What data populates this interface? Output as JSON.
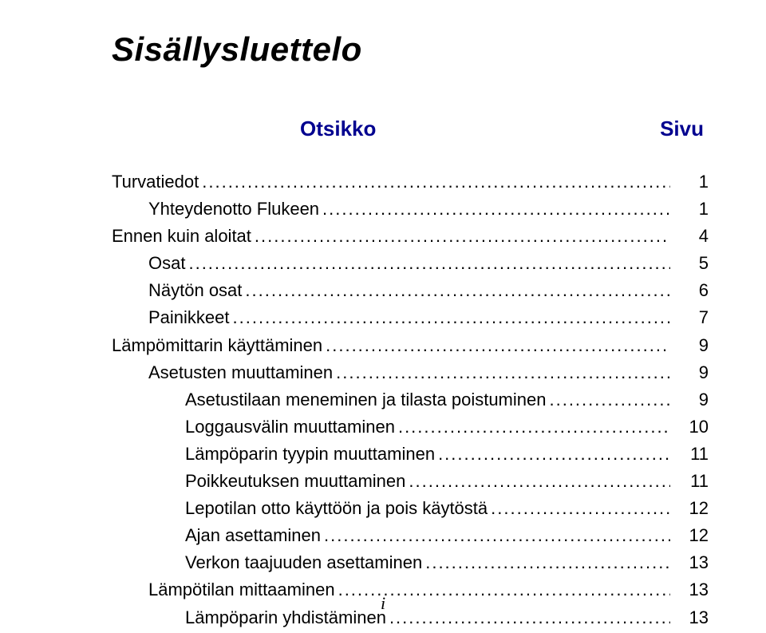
{
  "title": "Sisällysluettelo",
  "columns": {
    "left": "Otsikko",
    "right": "Sivu"
  },
  "page_number": "i",
  "colors": {
    "heading": "#00008f",
    "text": "#000000",
    "background": "#ffffff"
  },
  "typography": {
    "title_fontsize_pt": 32,
    "col_header_fontsize_pt": 20,
    "entry_fontsize_pt": 17,
    "title_italic": true,
    "col_header_bold": true
  },
  "toc": [
    {
      "label": "Turvatiedot",
      "page": "1",
      "level": 0
    },
    {
      "label": "Yhteydenotto Flukeen",
      "page": "1",
      "level": 1
    },
    {
      "label": "Ennen kuin aloitat",
      "page": "4",
      "level": 0
    },
    {
      "label": "Osat",
      "page": "5",
      "level": 1
    },
    {
      "label": "Näytön osat",
      "page": "6",
      "level": 1
    },
    {
      "label": "Painikkeet",
      "page": "7",
      "level": 1
    },
    {
      "label": "Lämpömittarin käyttäminen",
      "page": "9",
      "level": 0
    },
    {
      "label": "Asetusten muuttaminen",
      "page": "9",
      "level": 1
    },
    {
      "label": "Asetustilaan meneminen ja tilasta poistuminen",
      "page": "9",
      "level": 2
    },
    {
      "label": "Loggausvälin muuttaminen",
      "page": "10",
      "level": 2
    },
    {
      "label": "Lämpöparin tyypin muuttaminen",
      "page": "11",
      "level": 2
    },
    {
      "label": "Poikkeutuksen muuttaminen",
      "page": "11",
      "level": 2
    },
    {
      "label": "Lepotilan otto käyttöön ja pois käytöstä",
      "page": "12",
      "level": 2
    },
    {
      "label": "Ajan asettaminen",
      "page": "12",
      "level": 2
    },
    {
      "label": "Verkon taajuuden asettaminen",
      "page": "13",
      "level": 2
    },
    {
      "label": "Lämpötilan mittaaminen",
      "page": "13",
      "level": 1
    },
    {
      "label": "Lämpöparin yhdistäminen",
      "page": "13",
      "level": 2
    }
  ]
}
